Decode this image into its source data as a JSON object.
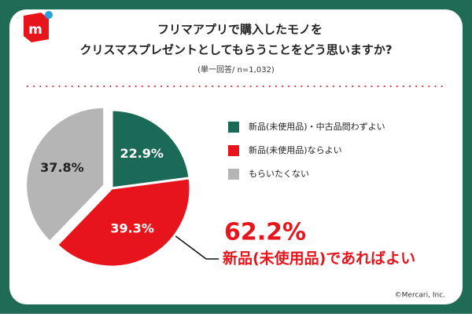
{
  "chart_data": {
    "type": "pie",
    "logo": "m",
    "title": [
      "フリマアプリで購入したモノを",
      "クリスマスプレゼントとしてもらうことをどう思いますか?"
    ],
    "subtitle": "(単一回答/ n=1,032)",
    "categories": [
      "新品(未使用品)・中古品問わずよい",
      "新品(未使用品)ならよい",
      "もらいたくない"
    ],
    "values": [
      22.9,
      39.3,
      37.8
    ],
    "value_labels": [
      "22.9%",
      "39.3%",
      "37.8%"
    ],
    "colors": [
      "#1b6a57",
      "#e8141c",
      "#b5b5b5"
    ],
    "label_colors": [
      "#ffffff",
      "#ffffff",
      "#222222"
    ],
    "explode": [
      false,
      false,
      true
    ],
    "legend": "right",
    "annotation": {
      "value": "62.2%",
      "text": "新品(未使用品)であればよい"
    },
    "credit": "©Mercari, Inc."
  }
}
